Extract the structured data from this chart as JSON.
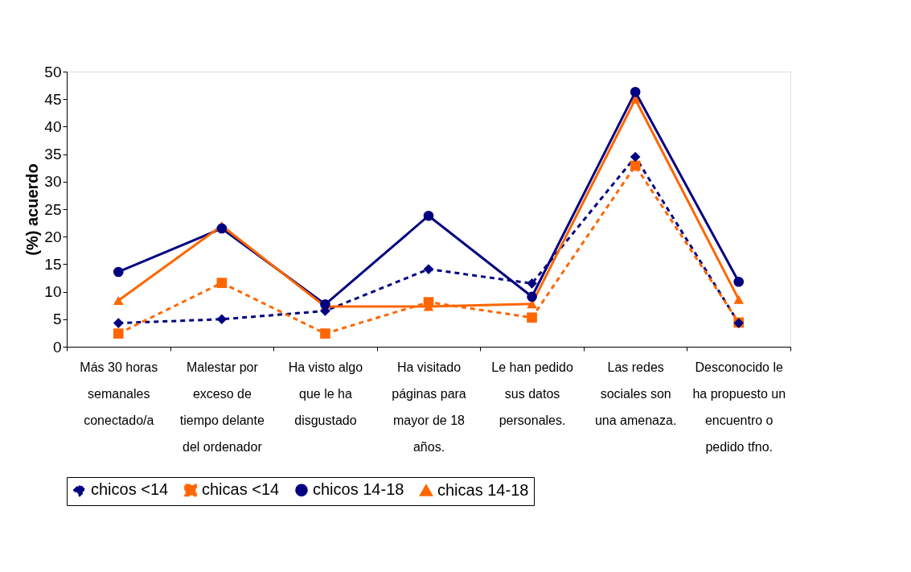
{
  "chart_data": {
    "type": "line",
    "ylabel": "(%) acuerdo",
    "categories": [
      "Más 30 horas semanales conectado/a",
      "Malestar por exceso de tiempo delante del ordenador",
      "Ha visto algo que le ha disgustado",
      "Ha visitado páginas para mayor de 18 años.",
      "Le han pedido sus datos personales.",
      "Las redes sociales son una amenaza.",
      "Desconocido le ha propuesto un encuentro o pedido tfno."
    ],
    "series": [
      {
        "name": "chicos <14",
        "color": "#000080",
        "marker": "diamond",
        "line_style": "dashed",
        "values": [
          4.3,
          5.0,
          6.5,
          14.1,
          11.5,
          34.5,
          4.3
        ]
      },
      {
        "name": "chicas <14",
        "color": "#ff6600",
        "marker": "square",
        "line_style": "dashed",
        "values": [
          2.4,
          11.6,
          2.4,
          8.1,
          5.3,
          32.9,
          4.4
        ]
      },
      {
        "name": "chicos 14-18",
        "color": "#000080",
        "marker": "circle",
        "line_style": "solid",
        "values": [
          13.6,
          21.5,
          7.7,
          23.8,
          9.1,
          46.3,
          11.8
        ]
      },
      {
        "name": "chicas 14-18",
        "color": "#ff6600",
        "marker": "triangle",
        "line_style": "solid",
        "values": [
          8.4,
          22.0,
          7.3,
          7.3,
          7.8,
          45.0,
          8.6
        ]
      }
    ],
    "ylim": [
      0,
      50
    ],
    "yticks": [
      0,
      5,
      10,
      15,
      20,
      25,
      30,
      35,
      40,
      45,
      50
    ],
    "grid": false,
    "legend": "bottom"
  }
}
